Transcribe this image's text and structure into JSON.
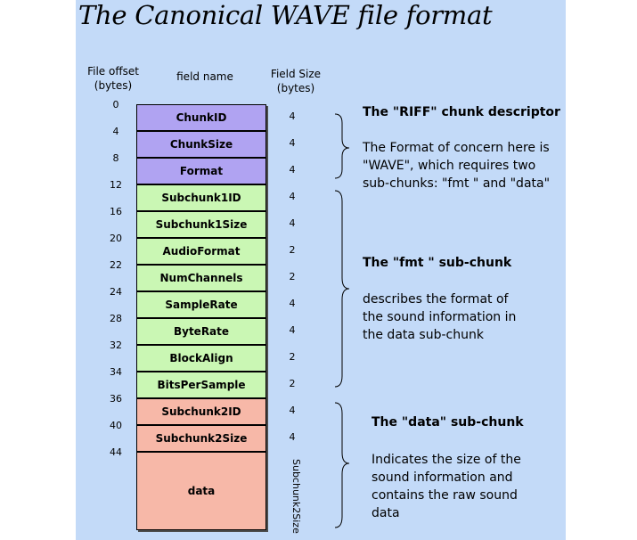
{
  "title": "The Canonical WAVE file format",
  "headers": {
    "offset": [
      "File offset",
      "(bytes)"
    ],
    "field_name": "field name",
    "field_size": [
      "Field Size",
      "(bytes)"
    ]
  },
  "fields": [
    {
      "offset": "0",
      "name": "ChunkID",
      "size": "4",
      "group": "riff"
    },
    {
      "offset": "4",
      "name": "ChunkSize",
      "size": "4",
      "group": "riff"
    },
    {
      "offset": "8",
      "name": "Format",
      "size": "4",
      "group": "riff"
    },
    {
      "offset": "12",
      "name": "Subchunk1ID",
      "size": "4",
      "group": "fmt"
    },
    {
      "offset": "16",
      "name": "Subchunk1Size",
      "size": "4",
      "group": "fmt"
    },
    {
      "offset": "20",
      "name": "AudioFormat",
      "size": "2",
      "group": "fmt"
    },
    {
      "offset": "22",
      "name": "NumChannels",
      "size": "2",
      "group": "fmt"
    },
    {
      "offset": "24",
      "name": "SampleRate",
      "size": "4",
      "group": "fmt"
    },
    {
      "offset": "28",
      "name": "ByteRate",
      "size": "4",
      "group": "fmt"
    },
    {
      "offset": "32",
      "name": "BlockAlign",
      "size": "2",
      "group": "fmt"
    },
    {
      "offset": "34",
      "name": "BitsPerSample",
      "size": "2",
      "group": "fmt"
    },
    {
      "offset": "36",
      "name": "Subchunk2ID",
      "size": "4",
      "group": "data"
    },
    {
      "offset": "40",
      "name": "Subchunk2Size",
      "size": "4",
      "group": "data"
    },
    {
      "offset": "44",
      "name": "data",
      "size": "Subchunk2Size",
      "group": "data"
    }
  ],
  "groups": {
    "riff": {
      "title": "The \"RIFF\" chunk descriptor",
      "lines": [
        "The Format of concern here is",
        "\"WAVE\", which requires two",
        "sub-chunks: \"fmt \" and \"data\""
      ]
    },
    "fmt": {
      "title": "The \"fmt \" sub-chunk",
      "lines": [
        "describes the format of",
        "the sound information in",
        "the data sub-chunk"
      ]
    },
    "data": {
      "title": "The \"data\" sub-chunk",
      "lines": [
        "Indicates the size of the",
        "sound information and",
        "contains the raw sound",
        "data"
      ]
    }
  },
  "colors": {
    "background": "#c3daf8",
    "riff": "#b0a3f2",
    "fmt": "#caf7b4",
    "data": "#f7b8a8"
  }
}
